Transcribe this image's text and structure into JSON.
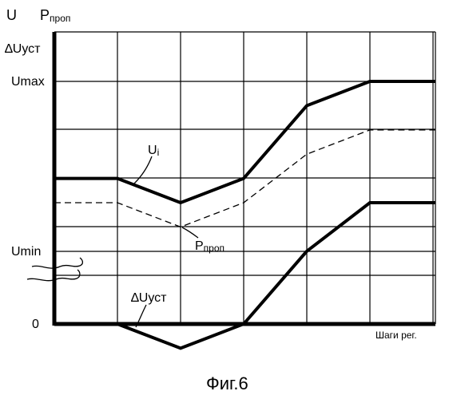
{
  "chart_data": {
    "type": "line",
    "x": [
      0,
      1,
      2,
      3,
      4,
      5,
      6
    ],
    "y_labels": {
      "zero": "0",
      "umin": "Umin",
      "umax": "Umax",
      "dusty": "∆Uуст"
    },
    "axis_titles": {
      "u": "U",
      "p_main": "P",
      "p_sub": "проп",
      "x": "Шаги рег."
    },
    "series": [
      {
        "name": "Ui",
        "label_main": "U",
        "label_sub": "i",
        "style": "thick",
        "values": [
          0.6,
          0.6,
          0.5,
          0.6,
          0.9,
          1.0,
          1.0
        ]
      },
      {
        "name": "Pпроп",
        "label_main": "P",
        "label_sub": "проп",
        "style": "dashed",
        "values": [
          0.5,
          0.5,
          0.4,
          0.5,
          0.7,
          0.8,
          0.8
        ]
      },
      {
        "name": "∆Uуст",
        "label_main": "∆Uуст",
        "style": "thick",
        "values": [
          0.0,
          0.0,
          -0.1,
          0.0,
          0.3,
          0.5,
          0.5
        ]
      }
    ],
    "grid": true
  },
  "caption": "Фиг.6"
}
